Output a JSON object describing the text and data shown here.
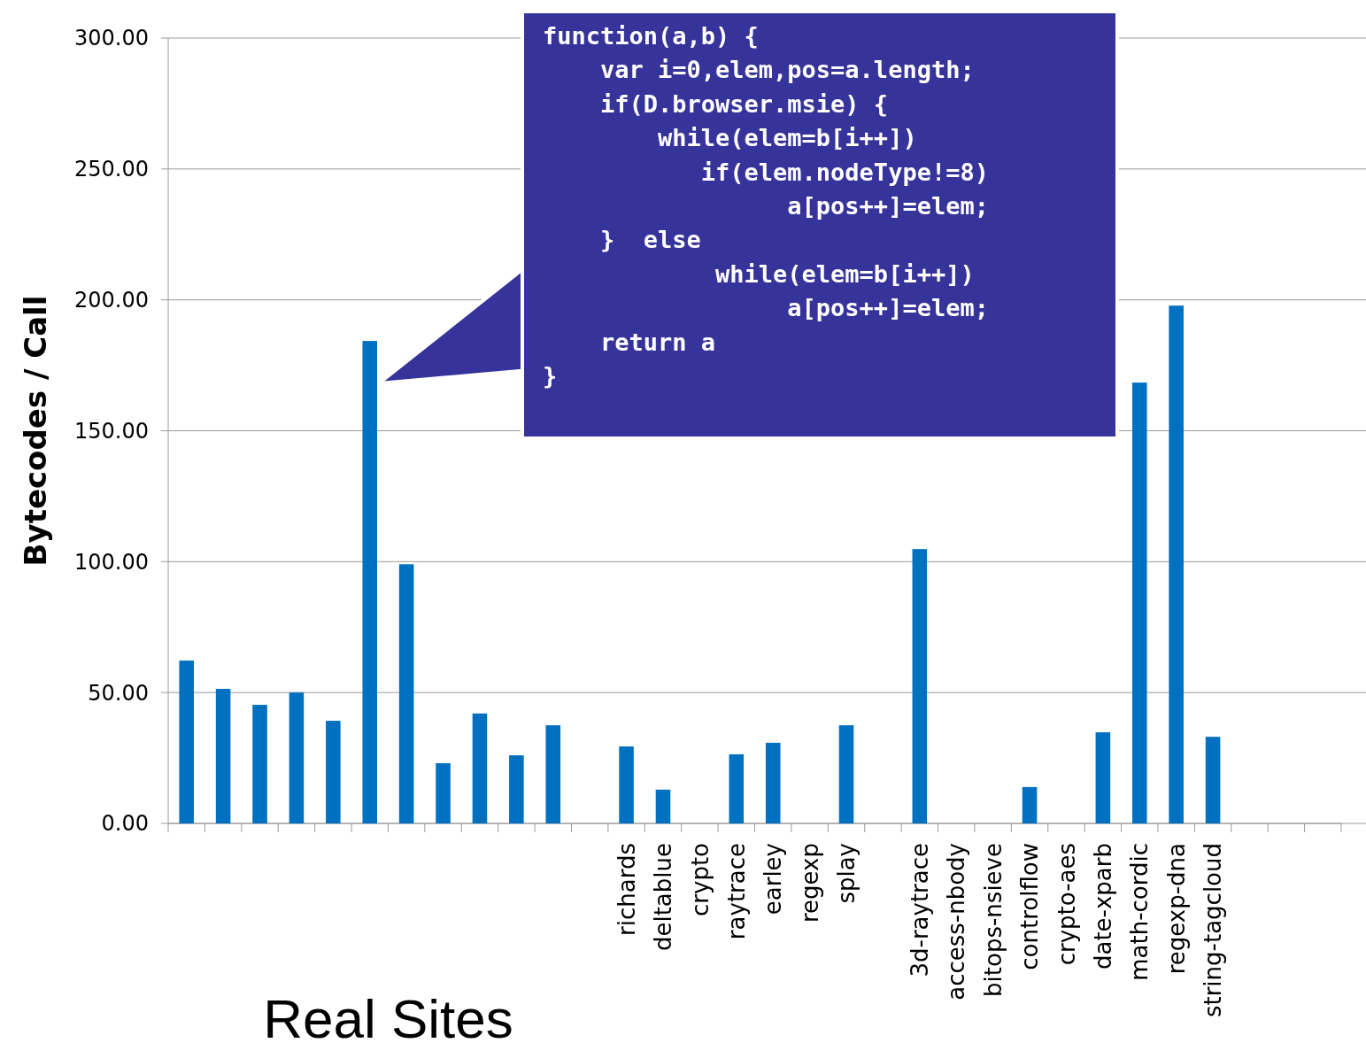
{
  "chart_data": {
    "type": "bar",
    "ylabel": "Bytecodes / Call",
    "categories": [
      null,
      null,
      null,
      null,
      null,
      null,
      null,
      null,
      null,
      null,
      null,
      null,
      "richards",
      "deltablue",
      "crypto",
      "raytrace",
      "earley",
      "regexp",
      "splay",
      null,
      "3d-raytrace",
      "access-nbody",
      "bitops-nsieve",
      "controlflow",
      "crypto-aes",
      "date-xparb",
      "math-cordic",
      "regexp-dna",
      "string-tagcloud",
      null,
      null,
      null
    ],
    "values": [
      62.2,
      51.4,
      45.3,
      50,
      39.2,
      184.3,
      99,
      23,
      42,
      26,
      37.5,
      null,
      29.4,
      12.9,
      null,
      26.4,
      30.8,
      null,
      37.5,
      null,
      104.8,
      null,
      null,
      13.9,
      null,
      34.8,
      168.4,
      197.8,
      33.1,
      null,
      null,
      null
    ],
    "color": "#0070c0",
    "ylim": [
      0,
      300
    ],
    "yticks": [
      {
        "value": 0,
        "label": "0.00"
      },
      {
        "value": 50,
        "label": "50.00"
      },
      {
        "value": 100,
        "label": "100.00"
      },
      {
        "value": 150,
        "label": "150.00"
      },
      {
        "value": 200,
        "label": "200.00"
      },
      {
        "value": 250,
        "label": "250.00"
      },
      {
        "value": 300,
        "label": "300.00"
      }
    ],
    "grid": "y",
    "annotations": [
      "Real Sites",
      "function(a,b) {\n    var i=0,elem,pos=a.length;\n    if(D.browser.msie) {\n        while(elem=b[i++])\n           if(elem.nodeType!=8)\n                 a[pos++]=elem;\n    }  else\n            while(elem=b[i++])\n                 a[pos++]=elem;\n    return a\n}"
    ]
  }
}
